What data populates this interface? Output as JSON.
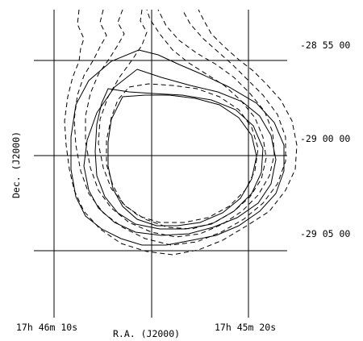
{
  "figure": {
    "ra_ticks": [
      "17h 46m 10s",
      "17h 45m 20s"
    ],
    "dec_ticks": [
      "-28 55 00",
      "-29 00 00",
      "-29 05 00"
    ],
    "xlabel": "R.A.  (J2000)",
    "ylabel": "Dec.  (J2000)"
  }
}
